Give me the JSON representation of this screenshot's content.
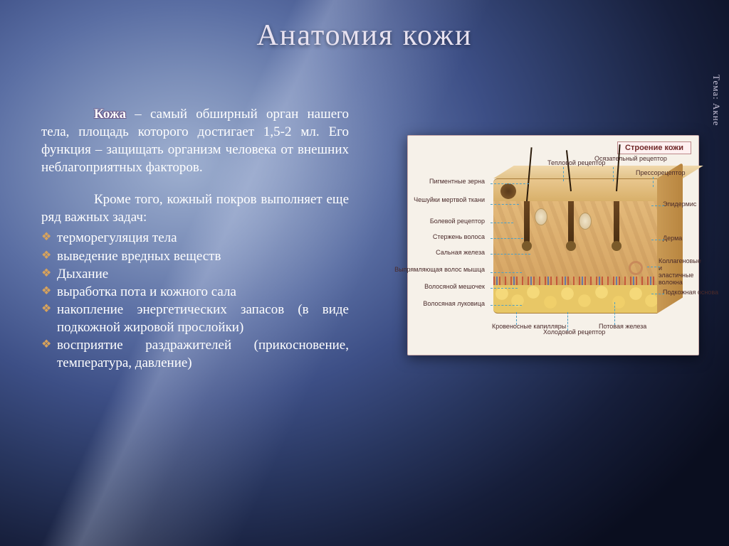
{
  "title": "Анатомия кожи",
  "side_label": "Тема: Акне",
  "lead_word": "Кожа",
  "paragraph1_rest": " – самый обширный орган нашего тела, площадь которого достигает 1,5-2 мл. Его функция – защищать организм человека от внешних неблагоприятных факторов.",
  "paragraph2": "Кроме того, кожный покров выполняет еще ряд важных задач:",
  "functions": [
    "терморегуляция тела",
    "выведение вредных веществ",
    "Дыхание",
    "выработка пота и кожного сала",
    "накопление энергетических запасов (в виде подкожной жировой прослойки)",
    "восприятие раздражителей (прикосновение, температура, давление)"
  ],
  "diagram": {
    "title": "Строение кожи",
    "bg_color": "#f6f1e9",
    "border_color": "#c9a8a8",
    "leader_color": "#4aa0c8",
    "label_color": "#4a2a2a",
    "label_fontsize": 9,
    "layers": {
      "epidermis_color": "#e0b874",
      "dermis_color": "#dcaa68",
      "hypodermis_color": "#eccd70"
    },
    "labels_left": [
      "Пигментные зерна",
      "Чешуйки мертвой ткани",
      "Болевой рецептор",
      "Стержень волоса",
      "Сальная железа",
      "Выпрямляющая волос мышца",
      "Волосяной мешочек",
      "Волосяная луковица"
    ],
    "labels_top": [
      "Тепловой рецептор",
      "Осязательный рецептор",
      "Прессорецептор"
    ],
    "labels_right": [
      "Эпидермис",
      "Дерма",
      "Коллагеновые и эластичные волокна",
      "Подкожная основа"
    ],
    "labels_bottom": [
      "Кровеносные капилляры",
      "Холодовой рецептор",
      "Потовая железа"
    ],
    "labels_bottom_pre": "Волосяная луковица"
  },
  "colors": {
    "title_color": "#e8e2f0",
    "bullet_color": "#d9a35a",
    "text_color": "#ffffff",
    "bg_gradient_inner": "#9fb0d0",
    "bg_gradient_outer": "#0a0e1f"
  },
  "typography": {
    "title_fontsize": 42,
    "body_fontsize": 19,
    "font_family": "Times New Roman"
  }
}
